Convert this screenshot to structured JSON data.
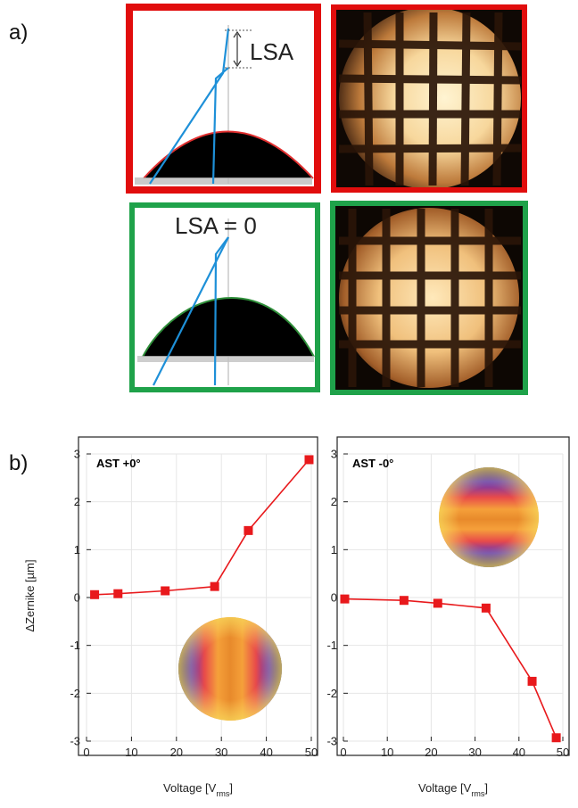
{
  "figure": {
    "panel_a_label": "a)",
    "panel_b_label": "b)",
    "contact_angle_top_label": "LSA",
    "contact_angle_bottom_label": "LSA = 0"
  },
  "colors": {
    "frame_bad": "#e10d0d",
    "frame_good": "#1fa24a",
    "line_blue": "#1e90d8",
    "droplet_edge_red": "#e23030",
    "droplet_edge_green": "#2f8f3a",
    "series": "#e8191c"
  },
  "chart_data": [
    {
      "type": "line",
      "title": "AST +0°",
      "xlabel": "Voltage [V_rms]",
      "ylabel": "ΔZernike [µm]",
      "xlim": [
        0,
        50
      ],
      "ylim": [
        -3,
        3
      ],
      "xticks": [
        0,
        10,
        20,
        30,
        40,
        50
      ],
      "yticks": [
        -3,
        -2,
        -1,
        0,
        1,
        2,
        3
      ],
      "grid": true,
      "marker": "square",
      "x": [
        1.8,
        7,
        17.5,
        28.5,
        36,
        49.5
      ],
      "y": [
        0.06,
        0.08,
        0.14,
        0.23,
        1.4,
        2.88
      ]
    },
    {
      "type": "line",
      "title": "AST -0°",
      "xlabel": "Voltage [V_rms]",
      "ylabel": "",
      "xlim": [
        0,
        50
      ],
      "ylim": [
        -3,
        3
      ],
      "xticks": [
        0,
        10,
        20,
        30,
        40,
        50
      ],
      "yticks": [
        -3,
        -2,
        -1,
        0,
        1,
        2,
        3
      ],
      "grid": true,
      "marker": "square",
      "x": [
        0.3,
        13.8,
        21.5,
        32.5,
        43,
        48.5
      ],
      "y": [
        -0.03,
        -0.06,
        -0.12,
        -0.22,
        -1.75,
        -2.93
      ]
    }
  ]
}
